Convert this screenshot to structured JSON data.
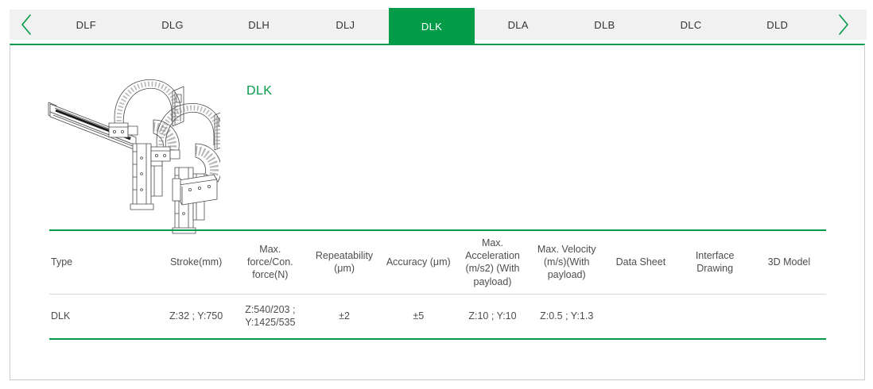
{
  "tabbar": {
    "tabs": [
      "DLF",
      "DLG",
      "DLH",
      "DLJ",
      "DLK",
      "DLA",
      "DLB",
      "DLC",
      "DLD"
    ],
    "active_tab": "DLK"
  },
  "panel": {
    "title": "DLK"
  },
  "table": {
    "headers": [
      "Type",
      "Stroke(mm)",
      "Max. force/Con. force(N)",
      "Repeatability (μm)",
      "Accuracy (μm)",
      "Max. Acceleration (m/s2) (With payload)",
      "Max. Velocity (m/s)(With payload)",
      "Data Sheet",
      "Interface Drawing",
      "3D Model"
    ],
    "rows": [
      [
        "DLK",
        "Z:32 ; Y:750",
        "Z:540/203 ; Y:1425/535",
        "±2",
        "±5",
        "Z:10 ; Y:10",
        "Z:0.5 ; Y:1.3",
        "",
        "",
        ""
      ]
    ]
  },
  "icons": {
    "prev": "chevron-left",
    "next": "chevron-right"
  },
  "colors": {
    "accent_green": "#029b48",
    "tabbar_bg": "#f1f1f1",
    "panel_border": "#cccccc",
    "text": "#4d4d4d",
    "tab_text": "#333333"
  }
}
